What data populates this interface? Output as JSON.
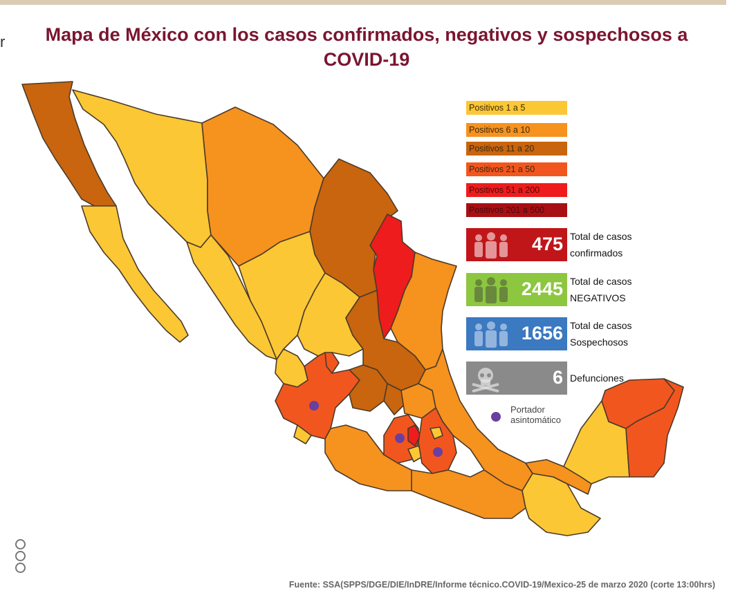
{
  "title": "Mapa de México con los casos confirmados, negativos y sospechosos a COVID-19",
  "legend": [
    {
      "label": "Positivos 1 a 5",
      "color": "#fcc734"
    },
    {
      "label": "Positivos 6 a 10",
      "color": "#f6921e"
    },
    {
      "label": "Positivos 11 a 20",
      "color": "#c8650e"
    },
    {
      "label": "Positivos 21 a 50",
      "color": "#f2561f"
    },
    {
      "label": "Positivos 51 a 200",
      "color": "#ee1c1c"
    },
    {
      "label": "Positivos 201 a 500",
      "color": "#a80f14"
    }
  ],
  "stats": [
    {
      "value": "475",
      "label_line1": "Total de casos",
      "label_line2": "confirmados",
      "color": "#c0161a",
      "icon": "people-icon"
    },
    {
      "value": "2445",
      "label_line1": "Total de casos",
      "label_line2": "NEGATIVOS",
      "color": "#8dc63f",
      "icon": "people-icon"
    },
    {
      "value": "1656",
      "label_line1": "Total de casos",
      "label_line2": "Sospechosos",
      "color": "#3b79c1",
      "icon": "people-icon"
    },
    {
      "value": "6",
      "label_line1": "Defunciones",
      "label_line2": "",
      "color": "#8a8a8a",
      "icon": "skull-icon"
    }
  ],
  "portador": {
    "line1": "Portador",
    "line2": "asintomático",
    "color": "#6b3fa0"
  },
  "source": "Fuente: SSA(SPPS/DGE/DIE/InDRE/Informe técnico.COVID-19/Mexico-25 de marzo 2020 (corte 13:00hrs)",
  "side_mark": "r"
}
